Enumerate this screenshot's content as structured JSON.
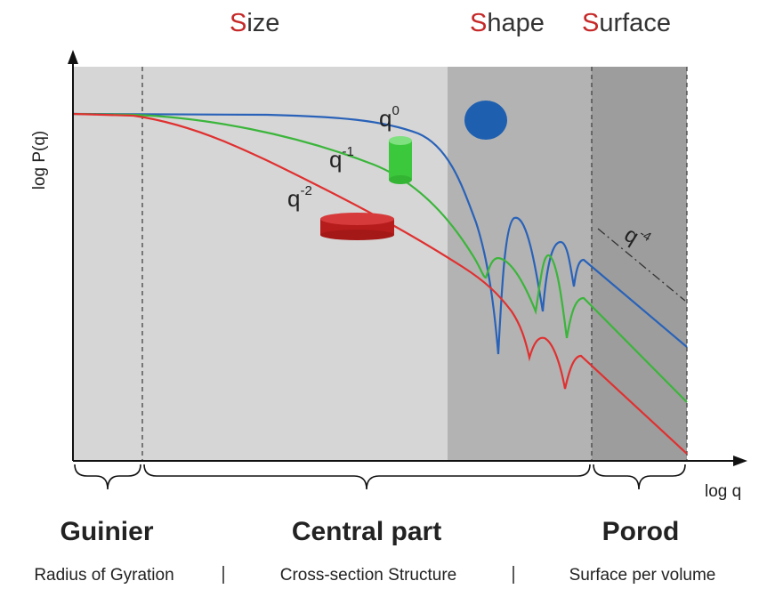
{
  "header": {
    "size": "Size",
    "shape": "Shape",
    "surface": "Surface"
  },
  "axes": {
    "y_label": "log P(q)",
    "x_label": "log q"
  },
  "slopes": [
    {
      "base": "q",
      "exponent": "0"
    },
    {
      "base": "q",
      "exponent": "-1"
    },
    {
      "base": "q",
      "exponent": "-2"
    },
    {
      "base": "q",
      "exponent": "-4"
    }
  ],
  "regions": [
    "Guinier",
    "Central part",
    "Porod"
  ],
  "descriptions": [
    "Radius of Gyration",
    "Cross-section Structure",
    "Surface per volume"
  ]
}
